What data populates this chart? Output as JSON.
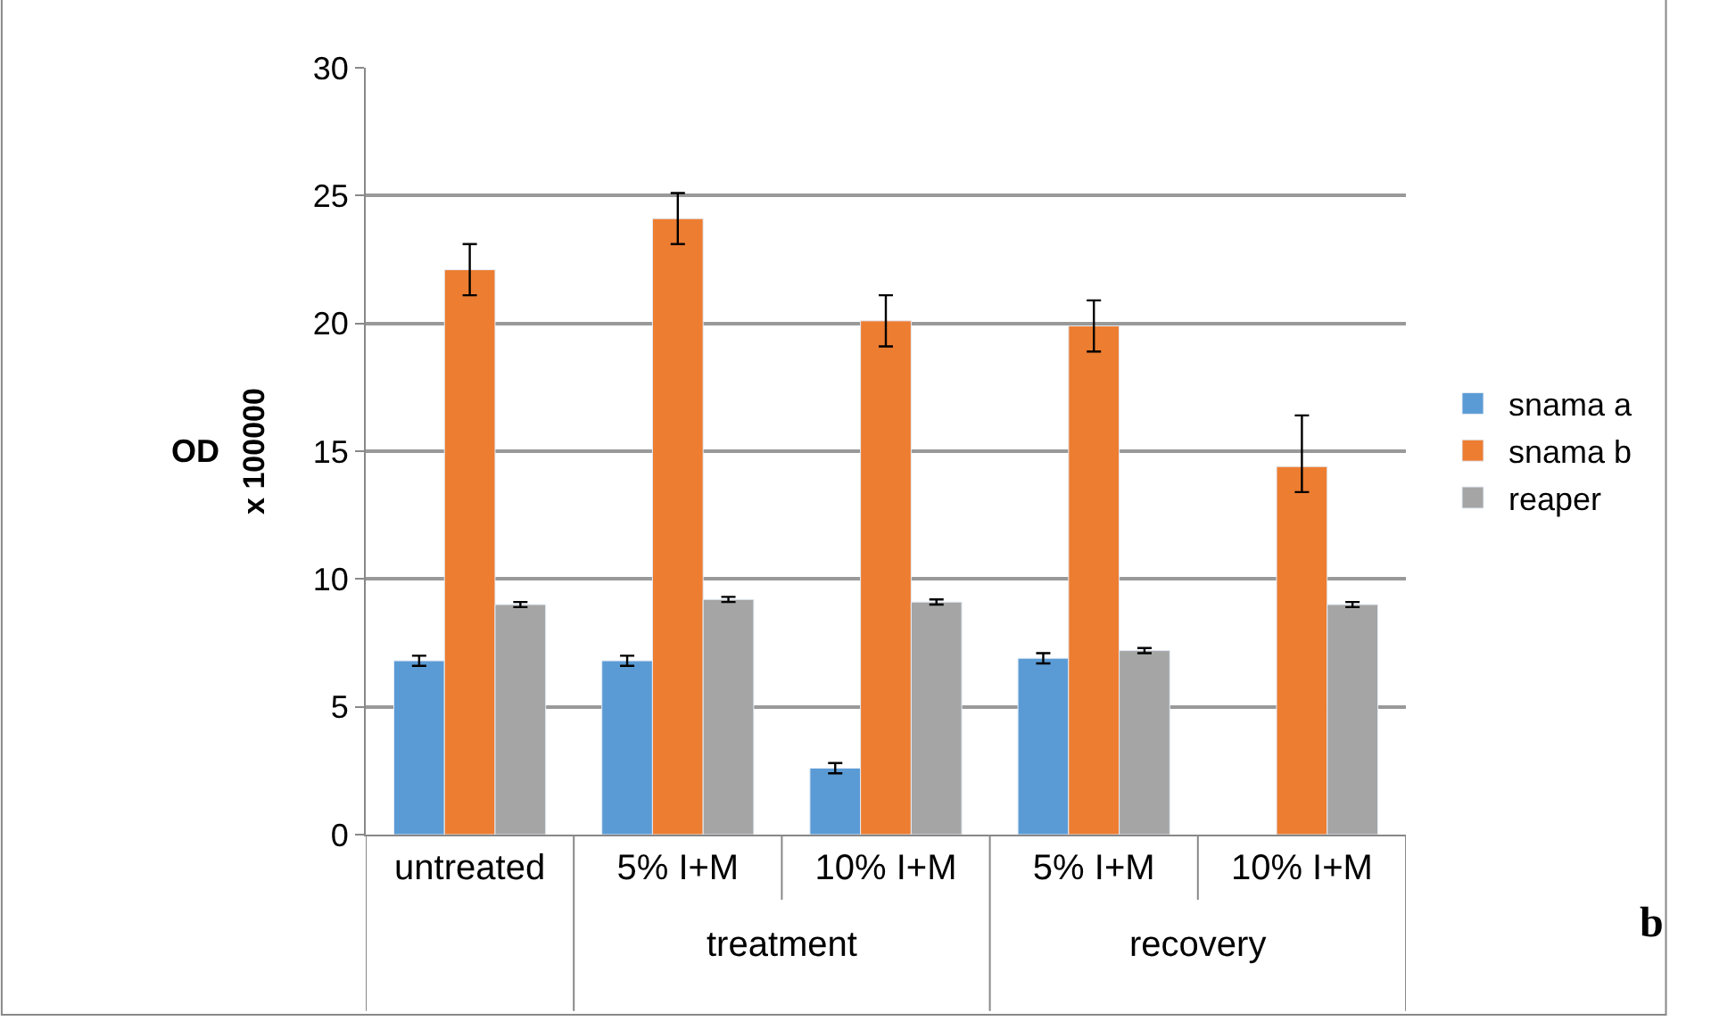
{
  "chart_data": {
    "type": "bar",
    "ylabel": "x 100000",
    "categories": [
      "untreated",
      "5% I+M",
      "10% I+M",
      "5% I+M",
      "10% I+M"
    ],
    "series": [
      {
        "name": "snama a",
        "color": "#5b9bd5",
        "values": [
          6.8,
          6.8,
          2.6,
          6.9,
          null
        ],
        "errors": [
          0.2,
          0.2,
          0.2,
          0.2,
          null
        ]
      },
      {
        "name": "snama b",
        "color": "#ed7d31",
        "values": [
          22.1,
          24.1,
          20.1,
          19.9,
          14.4
        ],
        "errors": [
          1.0,
          1.0,
          1.0,
          1.0,
          [
            13.4,
            16.4
          ]
        ]
      },
      {
        "name": "reaper",
        "color": "#a5a5a5",
        "values": [
          9.0,
          9.2,
          9.1,
          7.2,
          9.0
        ],
        "errors": [
          0.1,
          0.1,
          0.1,
          0.1,
          0.1
        ]
      }
    ],
    "ylim": [
      0,
      30
    ],
    "yticks": [
      0,
      5,
      10,
      15,
      20,
      25,
      30
    ],
    "grid": "y",
    "legend": "right",
    "annotations": [
      "OD",
      "treatment",
      "recovery",
      "b"
    ]
  }
}
